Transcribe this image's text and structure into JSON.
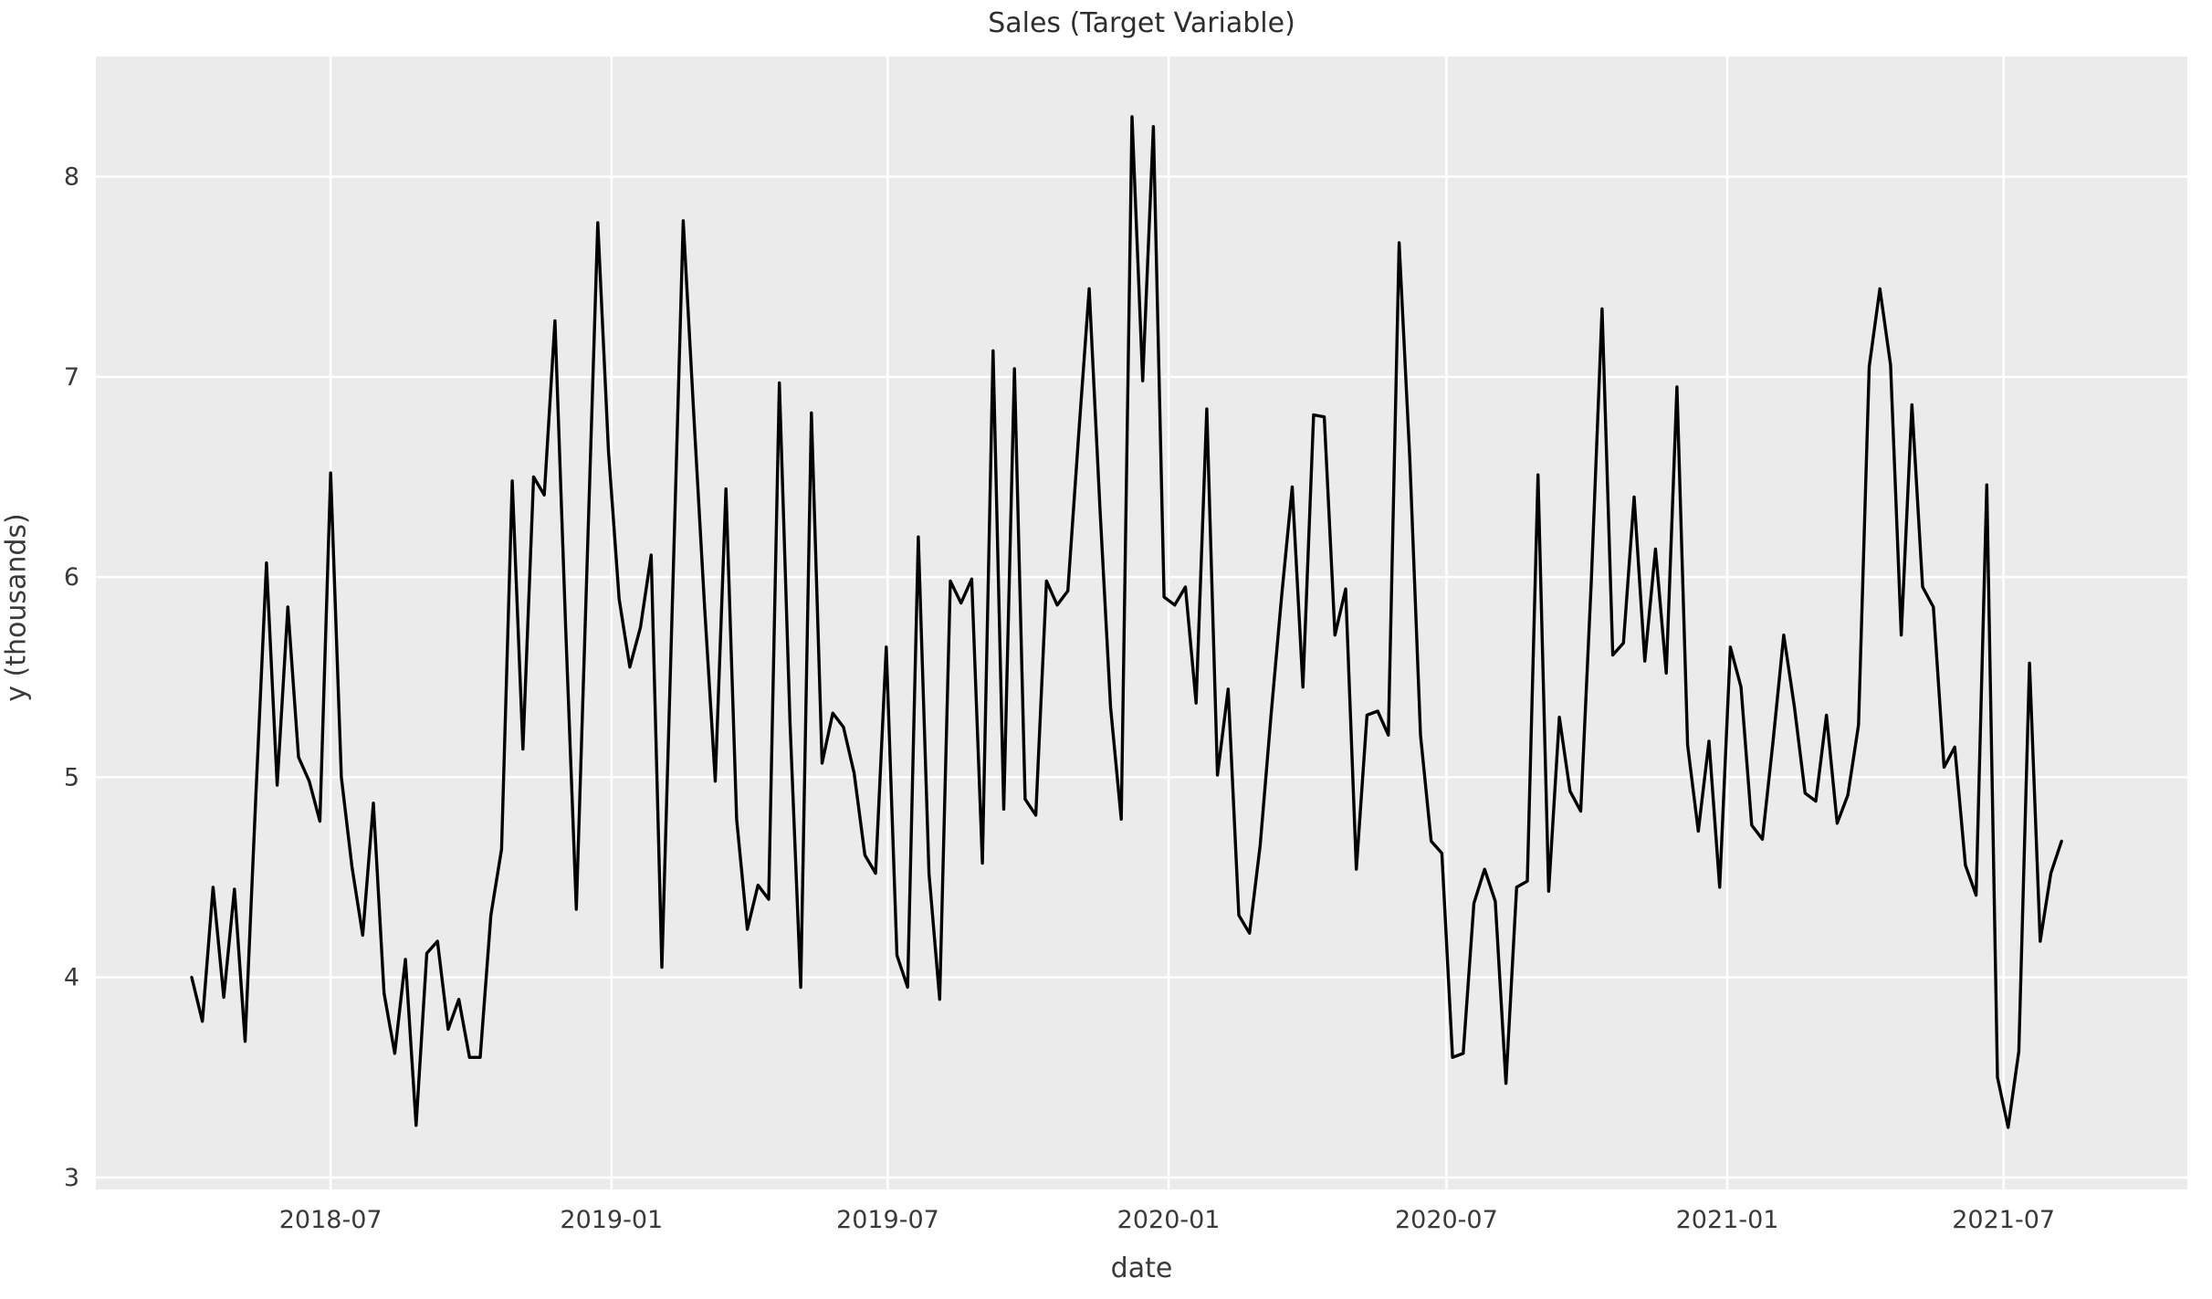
{
  "chart_data": {
    "type": "line",
    "title": "Sales (Target Variable)",
    "xlabel": "date",
    "ylabel": "y (thousands)",
    "series_name": "sales",
    "line_color": "#000000",
    "plot_bg_color": "#ebebeb",
    "grid_color": "#ffffff",
    "text_color": "#3a3a3a",
    "grid": "on",
    "legend": "none",
    "ylim": [
      2.94,
      8.6
    ],
    "y_ticks": [
      3,
      4,
      5,
      6,
      7,
      8
    ],
    "x_ticks": [
      {
        "label": "2018-07",
        "date": "2018-07-01"
      },
      {
        "label": "2019-01",
        "date": "2019-01-01"
      },
      {
        "label": "2019-07",
        "date": "2019-07-01"
      },
      {
        "label": "2020-01",
        "date": "2020-01-01"
      },
      {
        "label": "2020-07",
        "date": "2020-07-01"
      },
      {
        "label": "2021-01",
        "date": "2021-01-01"
      },
      {
        "label": "2021-07",
        "date": "2021-07-01"
      }
    ],
    "start_date": "2018-04-01",
    "frequency": "weekly",
    "interval_days": 7,
    "values": [
      4.0,
      3.78,
      4.45,
      3.9,
      4.44,
      3.68,
      4.9,
      6.07,
      4.96,
      5.85,
      5.1,
      4.98,
      4.78,
      6.52,
      5.0,
      4.55,
      4.21,
      4.87,
      3.92,
      3.62,
      4.09,
      3.26,
      4.12,
      4.18,
      3.74,
      3.89,
      3.6,
      3.6,
      4.31,
      4.64,
      6.48,
      5.14,
      6.5,
      6.41,
      7.28,
      5.75,
      4.34,
      6.05,
      7.77,
      6.63,
      5.89,
      5.55,
      5.75,
      6.11,
      4.05,
      5.9,
      7.78,
      6.8,
      5.85,
      4.98,
      6.44,
      4.79,
      4.24,
      4.46,
      4.39,
      6.97,
      5.27,
      3.95,
      6.82,
      5.07,
      5.32,
      5.25,
      5.02,
      4.61,
      4.52,
      5.65,
      4.11,
      3.95,
      6.2,
      4.52,
      3.89,
      5.98,
      5.87,
      5.99,
      4.57,
      7.13,
      4.84,
      7.04,
      4.89,
      4.81,
      5.98,
      5.86,
      5.93,
      6.7,
      7.44,
      6.35,
      5.35,
      4.79,
      8.3,
      6.98,
      8.25,
      5.9,
      5.86,
      5.95,
      5.37,
      6.84,
      5.01,
      5.44,
      4.31,
      4.22,
      4.66,
      5.3,
      5.9,
      6.45,
      5.45,
      6.81,
      6.8,
      5.71,
      5.94,
      4.54,
      5.31,
      5.33,
      5.21,
      7.67,
      6.59,
      5.21,
      4.68,
      4.62,
      3.6,
      3.62,
      4.37,
      4.54,
      4.38,
      3.47,
      4.45,
      4.48,
      6.51,
      4.43,
      5.3,
      4.93,
      4.83,
      5.99,
      7.34,
      5.61,
      5.67,
      6.4,
      5.58,
      6.14,
      5.52,
      6.95,
      5.16,
      4.73,
      5.18,
      4.45,
      5.65,
      5.45,
      4.76,
      4.69,
      5.18,
      5.71,
      5.35,
      4.92,
      4.88,
      5.31,
      4.77,
      4.91,
      5.26,
      7.05,
      7.44,
      7.06,
      5.71,
      6.86,
      5.95,
      5.85,
      5.05,
      5.15,
      4.56,
      4.41,
      6.46,
      3.5,
      3.25,
      3.63,
      5.57,
      4.18,
      4.52,
      4.68
    ]
  }
}
